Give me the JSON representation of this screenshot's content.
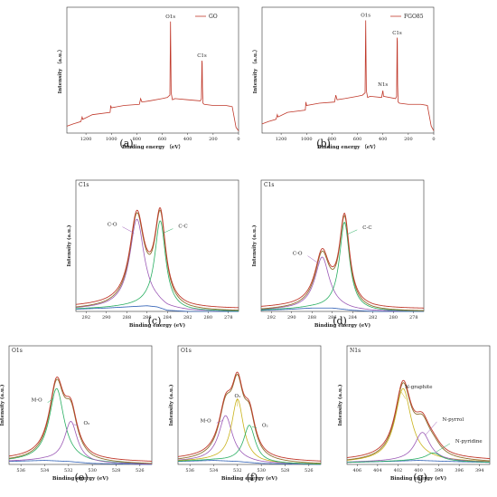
{
  "chart_data": [
    {
      "id": "a",
      "type": "line",
      "caption": "(a)",
      "title": "",
      "legend": "GO",
      "legend_position": "top-right",
      "xlabel": "Binding energy （eV）",
      "ylabel": "Intensity （a.u.）",
      "xlim": [
        1350,
        0
      ],
      "xticks": [
        1200,
        1000,
        800,
        600,
        400,
        200,
        0
      ],
      "ylim": [
        0,
        100
      ],
      "series": [
        {
          "name": "GO",
          "color": "#c0392b",
          "x": [
            1350,
            1300,
            1240,
            1230,
            1225,
            1150,
            1010,
            1005,
            1000,
            900,
            780,
            770,
            760,
            700,
            600,
            560,
            540,
            535,
            530,
            520,
            500,
            400,
            300,
            292,
            288,
            286,
            284,
            280,
            270,
            200,
            100,
            50,
            20,
            0
          ],
          "y": [
            6,
            8,
            10,
            14,
            12,
            16,
            18,
            24,
            22,
            24,
            25,
            30,
            27,
            28,
            30,
            31,
            33,
            97,
            35,
            29,
            30,
            29,
            28,
            30,
            63,
            61,
            40,
            26,
            25,
            24,
            24,
            23,
            5,
            2
          ]
        }
      ],
      "annotations": [
        {
          "text": "O1s",
          "x": 535,
          "y": 100
        },
        {
          "text": "C1s",
          "x": 288,
          "y": 66
        }
      ]
    },
    {
      "id": "b",
      "type": "line",
      "caption": "(b)",
      "title": "",
      "legend": "FGO85",
      "legend_position": "top-right",
      "xlabel": "Binding energy （eV）",
      "ylabel": "Intensity （a.u.）",
      "xlim": [
        1350,
        0
      ],
      "xticks": [
        1200,
        1000,
        800,
        600,
        400,
        200,
        0
      ],
      "ylim": [
        0,
        100
      ],
      "series": [
        {
          "name": "FGO85",
          "color": "#c0392b",
          "x": [
            1350,
            1300,
            1240,
            1230,
            1225,
            1150,
            1010,
            1005,
            1000,
            900,
            780,
            770,
            760,
            700,
            600,
            560,
            540,
            535,
            530,
            520,
            500,
            410,
            400,
            395,
            300,
            292,
            288,
            286,
            284,
            280,
            270,
            200,
            100,
            50,
            20,
            0
          ],
          "y": [
            8,
            10,
            12,
            16,
            14,
            18,
            20,
            27,
            24,
            26,
            27,
            33,
            29,
            30,
            32,
            33,
            35,
            98,
            37,
            31,
            32,
            31,
            37,
            32,
            30,
            32,
            83,
            80,
            42,
            27,
            26,
            25,
            25,
            24,
            6,
            2
          ]
        }
      ],
      "annotations": [
        {
          "text": "O1s",
          "x": 535,
          "y": 101
        },
        {
          "text": "N1s",
          "x": 400,
          "y": 41
        },
        {
          "text": "C1s",
          "x": 288,
          "y": 86
        }
      ]
    },
    {
      "id": "c",
      "type": "line",
      "caption": "(c)",
      "panel_label": "C1s",
      "xlabel": "Binding energy (eV)",
      "ylabel": "Intensity (a.u.)",
      "xlim": [
        293,
        277
      ],
      "xticks": [
        292,
        290,
        288,
        286,
        284,
        282,
        280,
        278
      ],
      "ylim": [
        0,
        100
      ],
      "baseline": {
        "color": "#2e5fb5",
        "x": [
          293,
          290,
          288,
          286,
          285,
          284,
          282,
          277
        ],
        "y": [
          2,
          3,
          4,
          5,
          4,
          1,
          0,
          0
        ]
      },
      "peaks": [
        {
          "name": "C-O",
          "center": 287.0,
          "height": 77,
          "width": 0.85,
          "color": "#9b59b6"
        },
        {
          "name": "C-C",
          "center": 284.7,
          "height": 77,
          "width": 0.65,
          "color": "#27ae60"
        }
      ],
      "envelope_colors": [
        "#c0392b",
        "#8e6e2e"
      ],
      "annotations": [
        {
          "text": "C-O",
          "peak": 0,
          "dx": -22,
          "dy": -8
        },
        {
          "text": "C-C",
          "peak": 1,
          "dx": 20,
          "dy": -6
        }
      ]
    },
    {
      "id": "d",
      "type": "line",
      "caption": "(d)",
      "panel_label": "C1s",
      "xlabel": "Binding energy (eV)",
      "ylabel": "Intensity (a.u.)",
      "xlim": [
        293,
        277
      ],
      "xticks": [
        292,
        290,
        288,
        286,
        284,
        282,
        280,
        278
      ],
      "ylim": [
        0,
        100
      ],
      "baseline": {
        "color": "#2e5fb5",
        "x": [
          293,
          290,
          288,
          286,
          285,
          284,
          282,
          277
        ],
        "y": [
          1,
          2,
          3,
          3,
          2,
          1,
          0,
          0
        ]
      },
      "peaks": [
        {
          "name": "C-O",
          "center": 287.0,
          "height": 45,
          "width": 0.85,
          "color": "#9b59b6"
        },
        {
          "name": "C-C",
          "center": 284.8,
          "height": 77,
          "width": 0.6,
          "color": "#27ae60"
        }
      ],
      "envelope_colors": [
        "#c0392b",
        "#8e6e2e"
      ],
      "annotations": [
        {
          "text": "C-O",
          "peak": 0,
          "dx": -22,
          "dy": -10
        },
        {
          "text": "C-C",
          "peak": 1,
          "dx": 20,
          "dy": -6
        }
      ]
    },
    {
      "id": "e",
      "type": "line",
      "caption": "(e)",
      "panel_label": "O1s",
      "xlabel": "Binding energy (eV)",
      "ylabel": "Intensity (a.u.)",
      "xlim": [
        537,
        525
      ],
      "xticks": [
        536,
        534,
        532,
        530,
        528,
        526
      ],
      "ylim": [
        0,
        100
      ],
      "baseline": {
        "color": "#2e5fb5",
        "x": [
          537,
          534,
          532,
          530,
          525
        ],
        "y": [
          3,
          4,
          3,
          1,
          0
        ]
      },
      "peaks": [
        {
          "name": "M-O",
          "center": 533.0,
          "height": 72,
          "width": 0.75,
          "color": "#27ae60"
        },
        {
          "name": "O₂",
          "center": 531.8,
          "height": 40,
          "width": 0.65,
          "color": "#9b59b6"
        }
      ],
      "envelope_colors": [
        "#c0392b",
        "#8e6e2e"
      ],
      "annotations": [
        {
          "text": "M-O",
          "peak": 0,
          "dx": -16,
          "dy": 4
        },
        {
          "text": "O₂",
          "peak": 1,
          "dx": 14,
          "dy": 0
        }
      ]
    },
    {
      "id": "f",
      "type": "line",
      "caption": "(f)",
      "panel_label": "O1s",
      "xlabel": "Binding energy (eV)",
      "ylabel": "Intensity (a.u.)",
      "xlim": [
        537,
        525
      ],
      "xticks": [
        536,
        534,
        532,
        530,
        528,
        526
      ],
      "ylim": [
        0,
        100
      ],
      "baseline": {
        "color": "#2e5fb5",
        "x": [
          537,
          534,
          532,
          530,
          525
        ],
        "y": [
          3,
          4,
          3,
          1,
          0
        ]
      },
      "peaks": [
        {
          "name": "M-O",
          "center": 533.0,
          "height": 45,
          "width": 0.7,
          "color": "#9b59b6"
        },
        {
          "name": "O₁",
          "center": 532.0,
          "height": 62,
          "width": 0.6,
          "color": "#c9b21a"
        },
        {
          "name": "O₂",
          "center": 531.0,
          "height": 37,
          "width": 0.6,
          "color": "#27ae60"
        }
      ],
      "envelope_colors": [
        "#c0392b",
        "#8e6e2e"
      ],
      "annotations": [
        {
          "text": "M-O",
          "peak": 0,
          "dx": -16,
          "dy": 2
        },
        {
          "text": "O₁",
          "peak": 1,
          "dx": 0,
          "dy": -10
        },
        {
          "text": "O₂",
          "peak": 2,
          "dx": 14,
          "dy": 0
        }
      ]
    },
    {
      "id": "g",
      "type": "line",
      "caption": "(g)",
      "panel_label": "N1s",
      "xlabel": "Binding energy (eV)",
      "ylabel": "Intensity (a.u.)",
      "xlim": [
        407,
        393
      ],
      "xticks": [
        406,
        404,
        402,
        400,
        398,
        396,
        394
      ],
      "ylim": [
        0,
        100
      ],
      "baseline": {
        "color": "#2e5fb5",
        "x": [
          407,
          403,
          400,
          397,
          393
        ],
        "y": [
          2,
          3,
          4,
          3,
          2
        ]
      },
      "peaks": [
        {
          "name": "N-graphite",
          "center": 401.5,
          "height": 72,
          "width": 0.95,
          "color": "#c9b21a"
        },
        {
          "name": "N-pyrrol",
          "center": 399.6,
          "height": 28,
          "width": 0.9,
          "color": "#9b59b6"
        },
        {
          "name": "N-pyridine",
          "center": 398.5,
          "height": 8,
          "width": 0.9,
          "color": "#27ae60"
        }
      ],
      "envelope_colors": [
        "#c0392b",
        "#8e6e2e"
      ],
      "annotations": [
        {
          "text": "N-graphite",
          "peak": 0,
          "dx": 2,
          "dy": -12
        },
        {
          "text": "N-pyrrol",
          "peak": 1,
          "dx": 22,
          "dy": -16
        },
        {
          "text": "N-pyridine",
          "peak": 2,
          "dx": 24,
          "dy": -10
        }
      ]
    }
  ]
}
